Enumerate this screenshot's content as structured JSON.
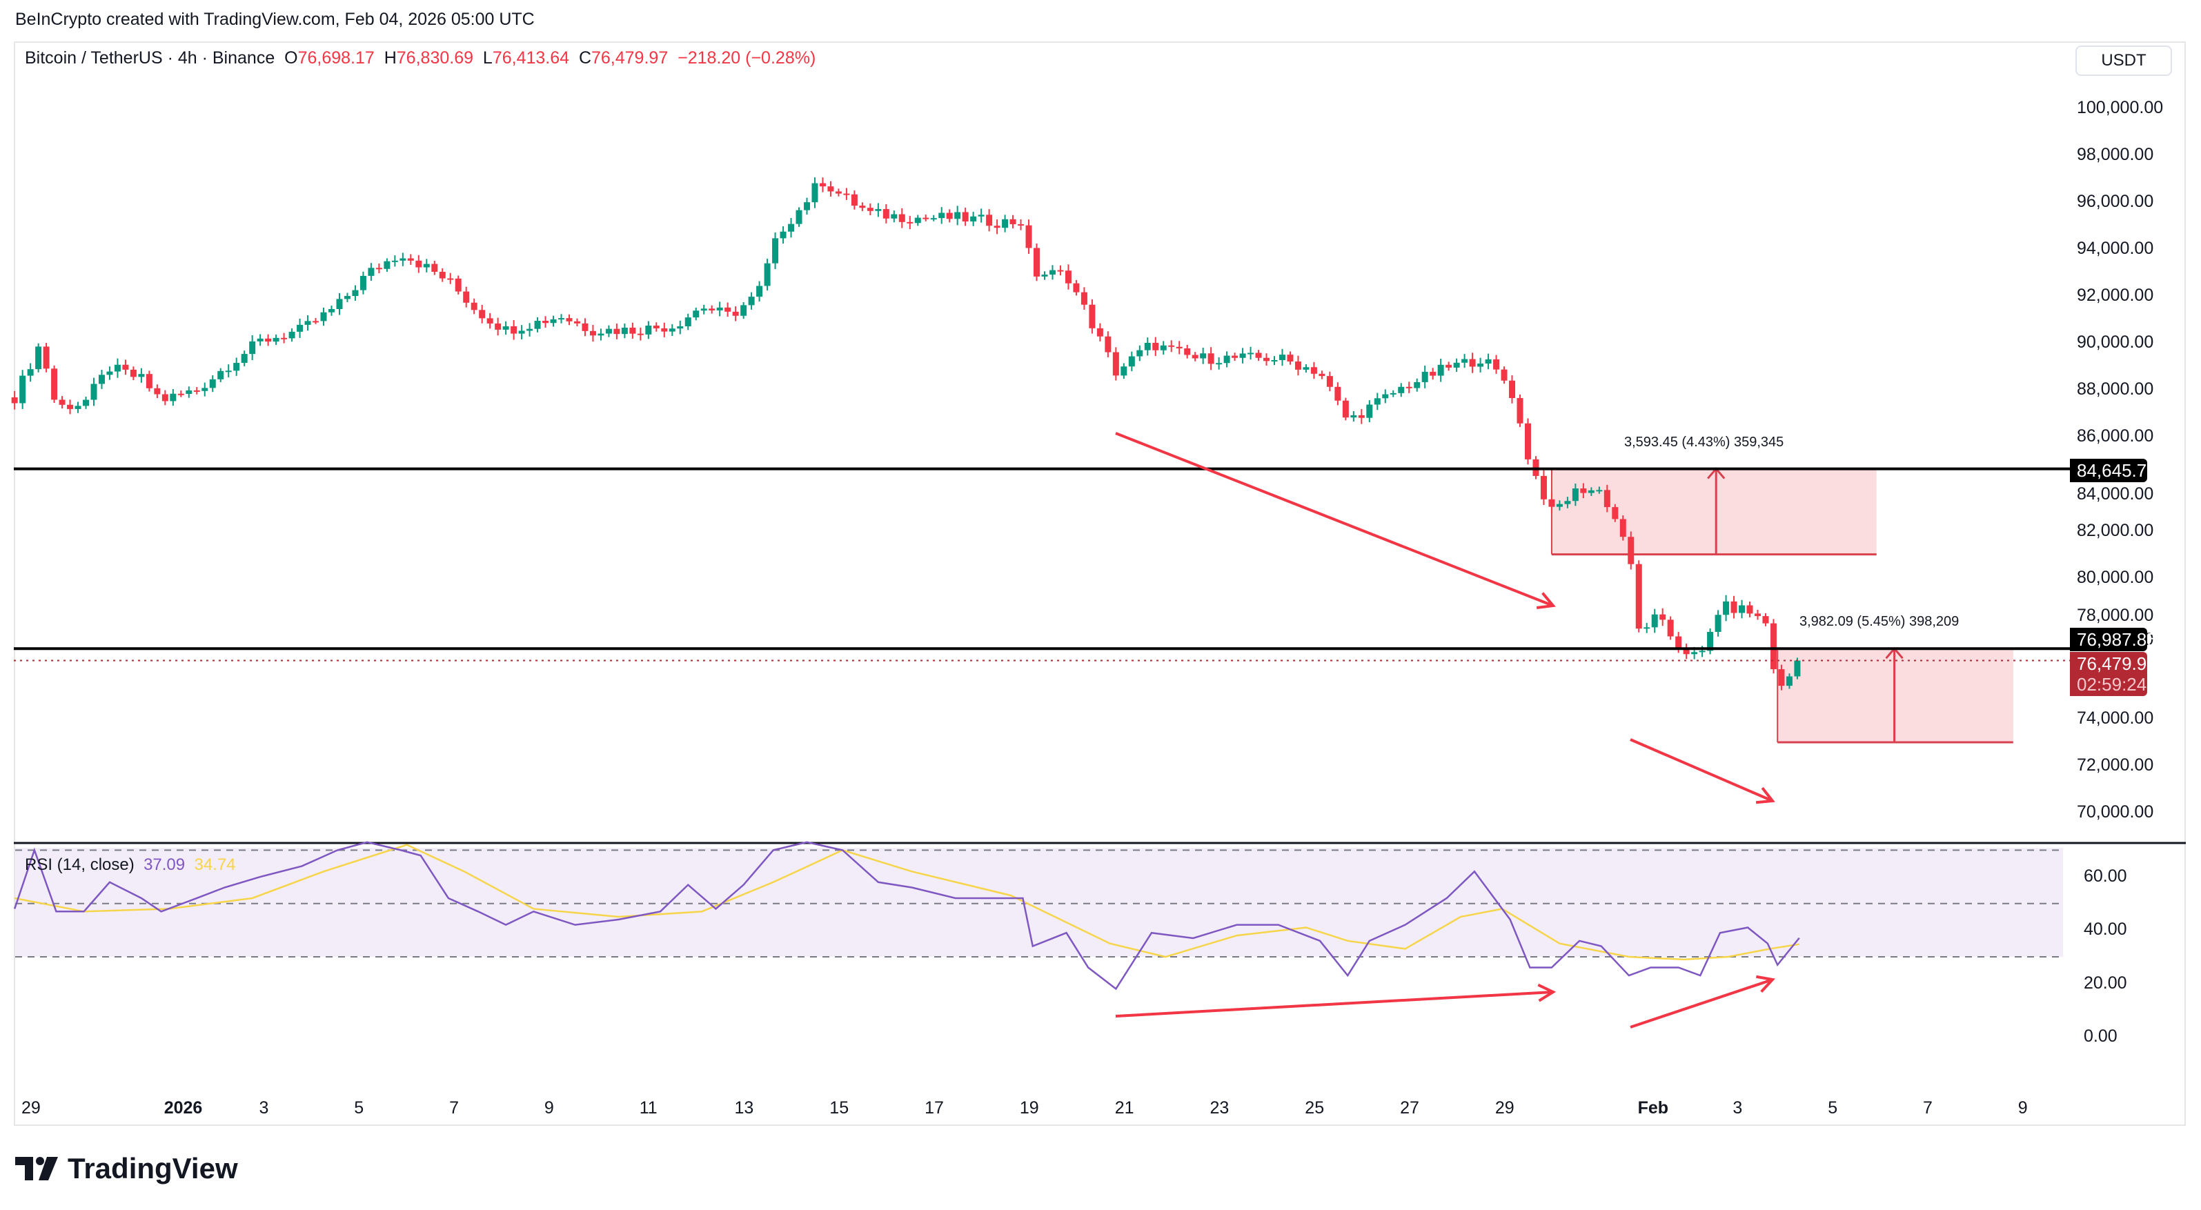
{
  "credit": "BeInCrypto created with TradingView.com, Feb 04, 2026 05:00 UTC",
  "legend": {
    "symbol": "Bitcoin / TetherUS · 4h · Binance",
    "o_label": "O",
    "o": "76,698.17",
    "h_label": "H",
    "h": "76,830.69",
    "l_label": "L",
    "l": "76,413.64",
    "c_label": "C",
    "c": "76,479.97",
    "change": "−218.20 (−0.28%)"
  },
  "currency": "USDT",
  "rsi_legend": {
    "name": "RSI (14, close)",
    "rsi": "37.09",
    "ma": "34.74"
  },
  "logo_text": "TradingView",
  "colors": {
    "up": "#089981",
    "down": "#f23645",
    "rsi": "#7e57c2",
    "rsi_ma": "#f7d54a",
    "box": "#fbdde0"
  },
  "price_tags": {
    "level_upper": "84,645.71",
    "level_lower": "76,987.85",
    "last": "76,479.97",
    "countdown": "02:59:24"
  },
  "measurements": [
    {
      "label": "3,593.45 (4.43%) 359,345"
    },
    {
      "label": "3,982.09 (5.45%) 398,209"
    }
  ],
  "chart_data": [
    {
      "type": "candlestick",
      "title": "Bitcoin / TetherUS · 4h · Binance",
      "ylim": [
        69000,
        101000
      ],
      "y_ticks": [
        "100,000.00",
        "98,000.00",
        "96,000.00",
        "94,000.00",
        "92,000.00",
        "90,000.00",
        "88,000.00",
        "86,000.00",
        "84,000.00",
        "82,000.00",
        "80,000.00",
        "78,000.00",
        "76,000.00",
        "74,000.00",
        "72,000.00",
        "70,000.00"
      ],
      "x_ticks": [
        {
          "label": "29",
          "date": "2025-12-29T00"
        },
        {
          "label": "2026",
          "date": "2026-01-01T00"
        },
        {
          "label": "3",
          "date": "2026-01-03T00"
        },
        {
          "label": "5",
          "date": "2026-01-05T00"
        },
        {
          "label": "7",
          "date": "2026-01-07T00"
        },
        {
          "label": "9",
          "date": "2026-01-09T00"
        },
        {
          "label": "11",
          "date": "2026-01-11T00"
        },
        {
          "label": "13",
          "date": "2026-01-13T00"
        },
        {
          "label": "15",
          "date": "2026-01-15T00"
        },
        {
          "label": "17",
          "date": "2026-01-17T00"
        },
        {
          "label": "19",
          "date": "2026-01-19T00"
        },
        {
          "label": "21",
          "date": "2026-01-21T00"
        },
        {
          "label": "23",
          "date": "2026-01-23T00"
        },
        {
          "label": "25",
          "date": "2026-01-25T00"
        },
        {
          "label": "27",
          "date": "2026-01-27T00"
        },
        {
          "label": "29",
          "date": "2026-01-29T00"
        },
        {
          "label": "Feb",
          "date": "2026-02-01T00"
        },
        {
          "label": "3",
          "date": "2026-02-03T00"
        },
        {
          "label": "5",
          "date": "2026-02-05T00"
        },
        {
          "label": "7",
          "date": "2026-02-07T00"
        },
        {
          "label": "9",
          "date": "2026-02-09T00"
        }
      ],
      "close_path": [
        [
          "2025-12-28T15",
          87690
        ],
        [
          "2025-12-29T04",
          90000
        ],
        [
          "2025-12-29T12",
          87270
        ],
        [
          "2025-12-30T02",
          87450
        ],
        [
          "2025-12-30T15",
          88950
        ],
        [
          "2025-12-31T07",
          88470
        ],
        [
          "2025-12-31T17",
          87570
        ],
        [
          "2026-01-01T11",
          88000
        ],
        [
          "2026-01-02T01",
          88950
        ],
        [
          "2026-01-02T19",
          90080
        ],
        [
          "2026-01-03T16",
          90560
        ],
        [
          "2026-01-04T10",
          91570
        ],
        [
          "2026-01-05T01",
          92950
        ],
        [
          "2026-01-05T18",
          93850
        ],
        [
          "2026-01-06T04",
          93370
        ],
        [
          "2026-01-06T18",
          92650
        ],
        [
          "2026-01-07T09",
          91330
        ],
        [
          "2026-01-07T23",
          90560
        ],
        [
          "2026-01-08T13",
          90860
        ],
        [
          "2026-01-09T03",
          91150
        ],
        [
          "2026-01-09T18",
          90560
        ],
        [
          "2026-01-10T15",
          90560
        ],
        [
          "2026-01-11T12",
          90740
        ],
        [
          "2026-01-12T02",
          91570
        ],
        [
          "2026-01-12T16",
          91150
        ],
        [
          "2026-01-13T06",
          92050
        ],
        [
          "2026-01-13T17",
          94740
        ],
        [
          "2026-01-14T04",
          95760
        ],
        [
          "2026-01-14T14",
          96950
        ],
        [
          "2026-01-15T01",
          96240
        ],
        [
          "2026-01-15T15",
          95520
        ],
        [
          "2026-01-16T12",
          95340
        ],
        [
          "2026-01-17T10",
          95340
        ],
        [
          "2026-01-18T07",
          95160
        ],
        [
          "2026-01-18T20",
          95160
        ],
        [
          "2026-01-19T01",
          92950
        ],
        [
          "2026-01-19T18",
          92950
        ],
        [
          "2026-01-20T05",
          91150
        ],
        [
          "2026-01-20T19",
          88770
        ],
        [
          "2026-01-21T13",
          89960
        ],
        [
          "2026-01-22T10",
          89360
        ],
        [
          "2026-01-23T08",
          89360
        ],
        [
          "2026-01-24T05",
          89360
        ],
        [
          "2026-01-25T02",
          88770
        ],
        [
          "2026-01-25T16",
          86680
        ],
        [
          "2026-01-26T03",
          87270
        ],
        [
          "2026-01-26T21",
          88170
        ],
        [
          "2026-01-27T18",
          88950
        ],
        [
          "2026-01-28T12",
          89360
        ],
        [
          "2026-01-29T02",
          88170
        ],
        [
          "2026-01-29T12",
          84880
        ],
        [
          "2026-01-29T23",
          82790
        ],
        [
          "2026-01-30T13",
          83810
        ],
        [
          "2026-01-31T00",
          83690
        ],
        [
          "2026-01-31T14",
          81300
        ],
        [
          "2026-01-31T18",
          77710
        ],
        [
          "2026-02-01T04",
          78310
        ],
        [
          "2026-02-01T15",
          77110
        ],
        [
          "2026-02-02T02",
          76520
        ],
        [
          "2026-02-02T12",
          78790
        ],
        [
          "2026-02-03T02",
          78610
        ],
        [
          "2026-02-03T12",
          78010
        ],
        [
          "2026-02-03T17",
          75020
        ],
        [
          "2026-02-04T04",
          76479.97
        ]
      ],
      "horizontal_levels": [
        84645.71,
        76987.85
      ],
      "last_price": 76479.97,
      "ranges": [
        {
          "from": "2026-01-29T23",
          "to": "2026-02-05T19",
          "low": 81000,
          "high": 84645.71,
          "arrow_at": "2026-02-02T10"
        },
        {
          "from": "2026-02-03T17",
          "to": "2026-02-08T16",
          "low": 73000,
          "high": 76987.85,
          "arrow_at": "2026-02-06T04"
        }
      ]
    },
    {
      "type": "line",
      "title": "RSI (14, close)",
      "ylim": [
        -8,
        72
      ],
      "y_ticks": [
        "60.00",
        "40.00",
        "20.00",
        "0.00"
      ],
      "bands": [
        70,
        50,
        30
      ],
      "series": [
        {
          "name": "RSI",
          "values": [
            [
              "2025-12-28T15",
              48
            ],
            [
              "2025-12-29T01",
              70
            ],
            [
              "2025-12-29T12",
              47
            ],
            [
              "2025-12-30T02",
              47
            ],
            [
              "2025-12-30T15",
              58
            ],
            [
              "2025-12-31T07",
              52
            ],
            [
              "2025-12-31T17",
              47
            ],
            [
              "2026-01-01T11",
              52
            ],
            [
              "2026-01-02T01",
              56
            ],
            [
              "2026-01-02T19",
              60
            ],
            [
              "2026-01-03T16",
              64
            ],
            [
              "2026-01-04T10",
              70
            ],
            [
              "2026-01-05T01",
              73
            ],
            [
              "2026-01-05T18",
              70
            ],
            [
              "2026-01-06T04",
              68
            ],
            [
              "2026-01-06T18",
              52
            ],
            [
              "2026-01-07T09",
              47
            ],
            [
              "2026-01-07T23",
              42
            ],
            [
              "2026-01-08T13",
              47
            ],
            [
              "2026-01-09T10",
              42
            ],
            [
              "2026-01-10T08",
              44
            ],
            [
              "2026-01-11T05",
              47
            ],
            [
              "2026-01-11T19",
              57
            ],
            [
              "2026-01-12T09",
              48
            ],
            [
              "2026-01-12T23",
              57
            ],
            [
              "2026-01-13T14",
              70
            ],
            [
              "2026-01-14T07",
              73
            ],
            [
              "2026-01-15T01",
              70
            ],
            [
              "2026-01-15T19",
              58
            ],
            [
              "2026-01-16T12",
              56
            ],
            [
              "2026-01-17T10",
              52
            ],
            [
              "2026-01-18T07",
              52
            ],
            [
              "2026-01-18T20",
              52
            ],
            [
              "2026-01-19T01",
              34
            ],
            [
              "2026-01-19T18",
              39
            ],
            [
              "2026-01-20T05",
              26
            ],
            [
              "2026-01-20T19",
              18
            ],
            [
              "2026-01-21T13",
              39
            ],
            [
              "2026-01-22T10",
              37
            ],
            [
              "2026-01-23T08",
              42
            ],
            [
              "2026-01-24T05",
              42
            ],
            [
              "2026-01-25T02",
              36
            ],
            [
              "2026-01-25T16",
              23
            ],
            [
              "2026-01-26T03",
              36
            ],
            [
              "2026-01-26T21",
              42
            ],
            [
              "2026-01-27T18",
              52
            ],
            [
              "2026-01-28T08",
              62
            ],
            [
              "2026-01-29T02",
              44
            ],
            [
              "2026-01-29T12",
              26
            ],
            [
              "2026-01-29T23",
              26
            ],
            [
              "2026-01-30T13",
              36
            ],
            [
              "2026-01-31T00",
              34
            ],
            [
              "2026-01-31T14",
              23
            ],
            [
              "2026-02-01T01",
              26
            ],
            [
              "2026-02-01T15",
              26
            ],
            [
              "2026-02-02T02",
              23
            ],
            [
              "2026-02-02T12",
              39
            ],
            [
              "2026-02-03T02",
              41
            ],
            [
              "2026-02-03T12",
              35
            ],
            [
              "2026-02-03T17",
              27
            ],
            [
              "2026-02-04T04",
              37.09
            ]
          ]
        },
        {
          "name": "MA",
          "values": [
            [
              "2025-12-28T15",
              52
            ],
            [
              "2025-12-30T02",
              47
            ],
            [
              "2025-12-31T21",
              48
            ],
            [
              "2026-01-02T15",
              52
            ],
            [
              "2026-01-04T03",
              62
            ],
            [
              "2026-01-05T21",
              72
            ],
            [
              "2026-01-07T02",
              62
            ],
            [
              "2026-01-08T13",
              48
            ],
            [
              "2026-01-10T08",
              45
            ],
            [
              "2026-01-12T02",
              47
            ],
            [
              "2026-01-13T14",
              58
            ],
            [
              "2026-01-15T01",
              70
            ],
            [
              "2026-01-16T12",
              62
            ],
            [
              "2026-01-18T14",
              53
            ],
            [
              "2026-01-20T16",
              35
            ],
            [
              "2026-01-21T20",
              30
            ],
            [
              "2026-01-23T08",
              38
            ],
            [
              "2026-01-24T19",
              41
            ],
            [
              "2026-01-25T16",
              36
            ],
            [
              "2026-01-26T21",
              33
            ],
            [
              "2026-01-28T01",
              45
            ],
            [
              "2026-01-28T22",
              48
            ],
            [
              "2026-01-30T03",
              35
            ],
            [
              "2026-01-31T14",
              30
            ],
            [
              "2026-02-01T18",
              29
            ],
            [
              "2026-02-02T16",
              30
            ],
            [
              "2026-02-03T13",
              33
            ],
            [
              "2026-02-04T04",
              34.74
            ]
          ]
        }
      ]
    }
  ]
}
